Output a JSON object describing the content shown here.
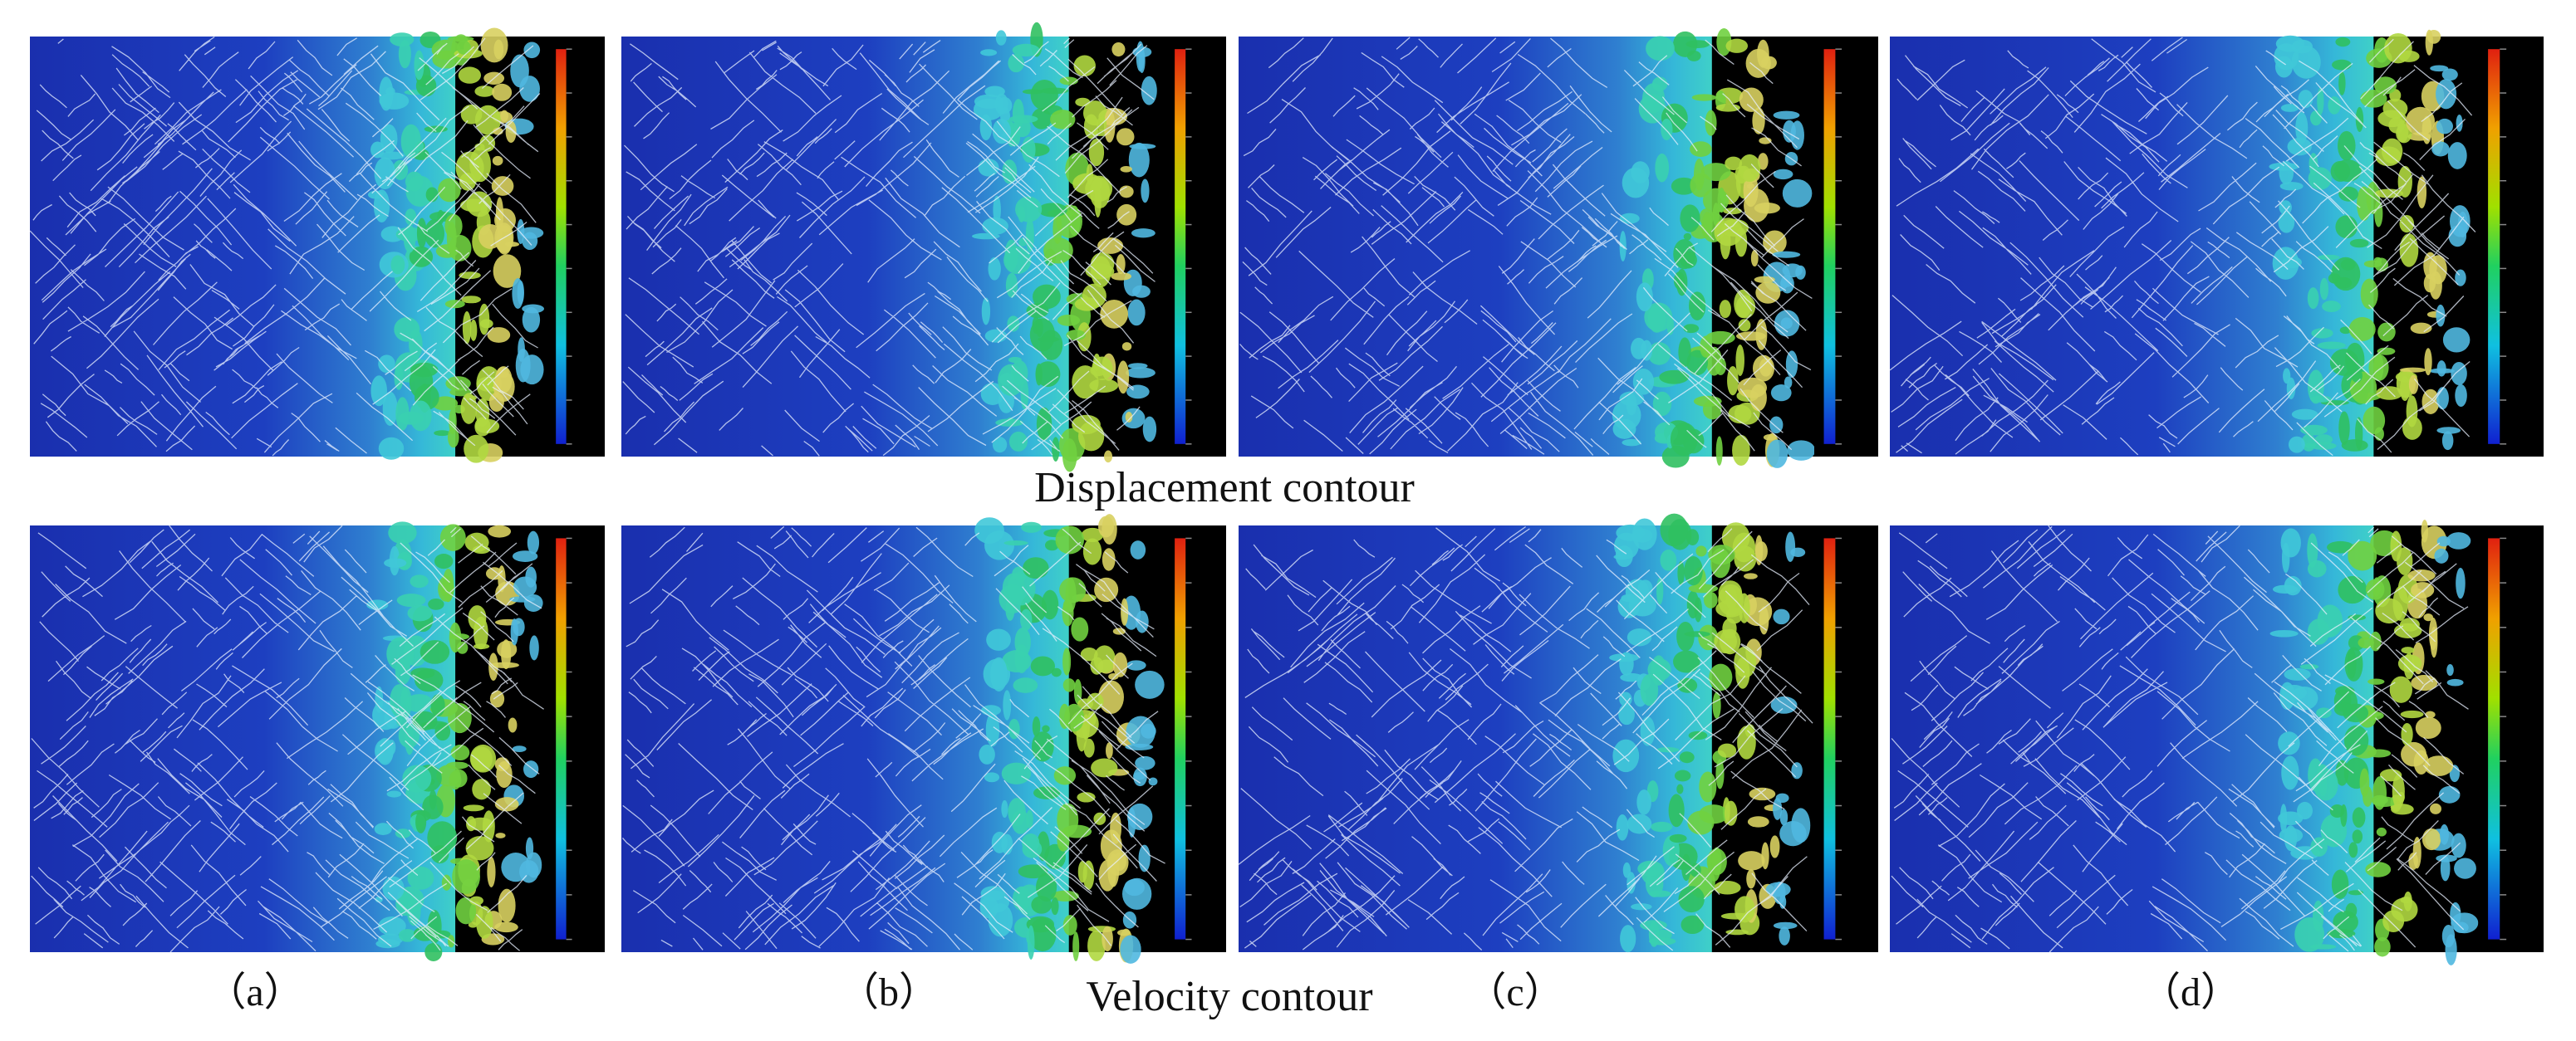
{
  "panels": {
    "row_titles": [
      "Displacement contour",
      "Velocity contour"
    ],
    "labels": [
      "（a）",
      "（b）",
      "（c）",
      "（d）"
    ]
  }
}
